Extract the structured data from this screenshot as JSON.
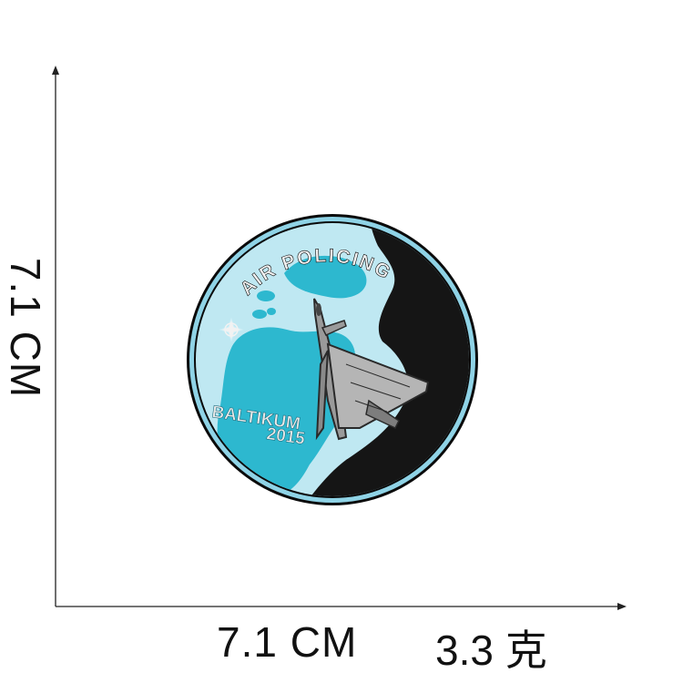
{
  "dimensions": {
    "width_label": "7.1 CM",
    "height_label": "7.1 CM",
    "weight_label": "3.3 克"
  },
  "patch": {
    "arc_text": "AIR POLICING",
    "region_text": "BALTIKUM",
    "year_text": "2015",
    "colors": {
      "sky_blue": "#8fd3e6",
      "sea_light": "#bfe8f2",
      "land_teal": "#2db8cf",
      "night_black": "#151515",
      "border_black": "#0a0a0a",
      "jet_gray": "#9a9a9a",
      "text_white": "#f2f2f2"
    }
  }
}
